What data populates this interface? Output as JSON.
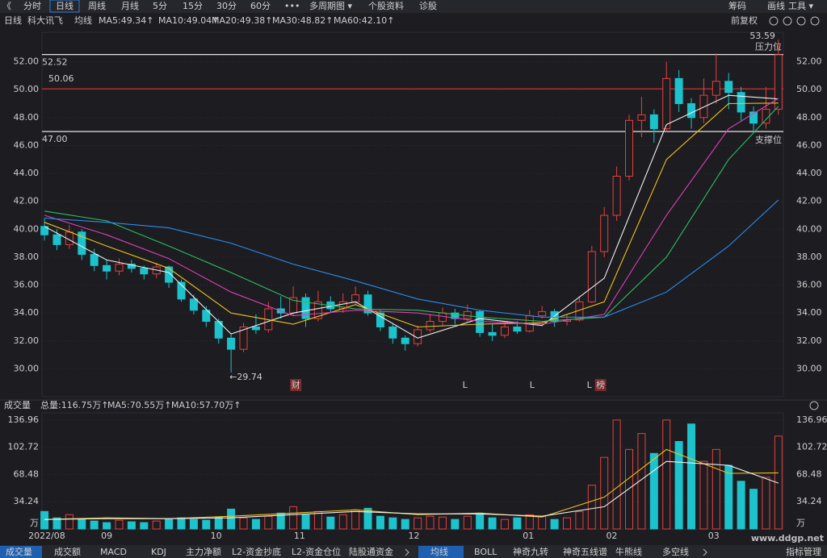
{
  "toolbar": {
    "left": [
      "《",
      "分时",
      "日线",
      "周线",
      "月线",
      "5分",
      "15分",
      "30分",
      "60分",
      "•••",
      "多周期图 ▾",
      "个股资料",
      "诊股"
    ],
    "right": [
      "筹码",
      "画线",
      "工具 ▾"
    ]
  },
  "info": {
    "period": "日线",
    "stock": "科大讯飞",
    "ma_label": "均线",
    "adjust": "前复权"
  },
  "chart_data": [
    {
      "type": "candlestick",
      "xlim": [
        -0.2,
        59.4
      ],
      "ylim": [
        28,
        54
      ],
      "yticks": [
        {
          "value": 30,
          "label": "30.00"
        },
        {
          "value": 32,
          "label": "32.00"
        },
        {
          "value": 34,
          "label": "34.00"
        },
        {
          "value": 36,
          "label": "36.00"
        },
        {
          "value": 38,
          "label": "38.00"
        },
        {
          "value": 40,
          "label": "40.00"
        },
        {
          "value": 42,
          "label": "42.00"
        },
        {
          "value": 44,
          "label": "44.00"
        },
        {
          "value": 46,
          "label": "46.00"
        },
        {
          "value": 48,
          "label": "48.00"
        },
        {
          "value": 50,
          "label": "50.00"
        },
        {
          "value": 52,
          "label": "52.00"
        }
      ],
      "up_color": "#e8413e",
      "down_color": "#1cc3cc",
      "candles": [
        [
          40.2,
          39.6,
          40.8,
          39.2
        ],
        [
          39.6,
          38.9,
          40.0,
          38.5
        ],
        [
          38.9,
          39.8,
          40.3,
          38.6
        ],
        [
          39.8,
          38.2,
          40.0,
          37.8
        ],
        [
          38.2,
          37.4,
          38.6,
          37.0
        ],
        [
          37.4,
          37.0,
          37.8,
          36.4
        ],
        [
          37.0,
          37.5,
          37.9,
          36.7
        ],
        [
          37.5,
          37.2,
          37.8,
          36.9
        ],
        [
          37.2,
          36.8,
          37.4,
          36.4
        ],
        [
          36.8,
          37.3,
          37.6,
          36.5
        ],
        [
          37.3,
          36.2,
          37.4,
          35.8
        ],
        [
          36.2,
          35.0,
          36.4,
          34.8
        ],
        [
          35.0,
          34.2,
          35.3,
          33.9
        ],
        [
          34.2,
          33.4,
          34.5,
          33.0
        ],
        [
          33.4,
          32.2,
          33.6,
          31.8
        ],
        [
          32.2,
          31.4,
          32.5,
          29.74
        ],
        [
          31.4,
          33.0,
          33.3,
          31.2
        ],
        [
          33.0,
          32.8,
          33.9,
          32.5
        ],
        [
          32.8,
          34.3,
          34.8,
          32.6
        ],
        [
          34.3,
          34.0,
          35.2,
          33.6
        ],
        [
          34.0,
          35.1,
          35.9,
          33.8
        ],
        [
          35.1,
          33.6,
          35.4,
          33.0
        ],
        [
          33.6,
          34.8,
          35.6,
          33.4
        ],
        [
          34.8,
          34.3,
          35.2,
          34.0
        ],
        [
          34.3,
          34.8,
          35.4,
          34.0
        ],
        [
          34.8,
          35.3,
          35.9,
          34.6
        ],
        [
          35.3,
          34.0,
          35.6,
          33.8
        ],
        [
          34.0,
          33.0,
          34.2,
          32.7
        ],
        [
          33.0,
          32.2,
          33.2,
          31.8
        ],
        [
          32.2,
          31.8,
          32.4,
          31.3
        ],
        [
          31.8,
          32.8,
          33.1,
          31.6
        ],
        [
          32.8,
          33.4,
          33.9,
          32.6
        ],
        [
          33.4,
          34.0,
          34.4,
          33.1
        ],
        [
          34.0,
          33.6,
          34.3,
          33.2
        ],
        [
          33.6,
          34.1,
          34.6,
          33.4
        ],
        [
          34.1,
          32.6,
          34.2,
          32.3
        ],
        [
          32.6,
          32.4,
          33.2,
          32.0
        ],
        [
          32.4,
          33.0,
          33.3,
          32.2
        ],
        [
          33.0,
          32.7,
          33.4,
          32.5
        ],
        [
          32.7,
          33.8,
          34.2,
          32.6
        ],
        [
          33.8,
          34.1,
          34.5,
          33.6
        ],
        [
          34.1,
          33.4,
          34.3,
          33.0
        ],
        [
          33.4,
          33.5,
          33.9,
          33.1
        ],
        [
          33.5,
          34.8,
          35.2,
          33.4
        ],
        [
          34.8,
          38.4,
          38.8,
          34.7
        ],
        [
          38.4,
          41.0,
          41.6,
          38.0
        ],
        [
          41.0,
          43.8,
          44.5,
          40.6
        ],
        [
          43.8,
          47.8,
          48.2,
          43.5
        ],
        [
          47.8,
          48.2,
          49.5,
          46.6
        ],
        [
          48.2,
          47.2,
          48.6,
          46.2
        ],
        [
          47.2,
          50.8,
          52.0,
          47.0
        ],
        [
          50.8,
          49.0,
          51.4,
          48.4
        ],
        [
          49.0,
          48.0,
          49.4,
          47.2
        ],
        [
          48.0,
          49.6,
          50.8,
          47.6
        ],
        [
          49.6,
          50.6,
          52.6,
          49.0
        ],
        [
          50.6,
          49.8,
          51.2,
          48.6
        ],
        [
          49.8,
          48.4,
          50.2,
          47.8
        ],
        [
          48.4,
          47.6,
          48.8,
          47.0
        ],
        [
          47.6,
          48.6,
          50.2,
          47.2
        ],
        [
          48.6,
          52.5,
          53.59,
          48.2
        ]
      ],
      "ma_x": [
        0,
        5,
        10,
        15,
        20,
        25,
        30,
        35,
        40,
        45,
        50,
        55,
        59
      ],
      "series": [
        {
          "name": "MA5",
          "legend": "MA5:49.34↑",
          "color": "#f0f0f0",
          "values": [
            40.2,
            37.8,
            36.9,
            32.5,
            34.0,
            34.8,
            32.2,
            33.6,
            33.1,
            36.5,
            47.5,
            49.6,
            49.34
          ]
        },
        {
          "name": "MA10",
          "legend": "MA10:49.04↑",
          "color": "#f2c21a",
          "values": [
            40.5,
            38.8,
            37.2,
            34.0,
            33.2,
            34.6,
            33.0,
            33.2,
            33.3,
            34.8,
            45.0,
            49.0,
            49.04
          ]
        },
        {
          "name": "MA20",
          "legend": "MA20:49.38↑",
          "color": "#e040b8",
          "values": [
            41.0,
            39.6,
            37.9,
            35.5,
            33.8,
            34.2,
            34.0,
            33.4,
            33.2,
            33.9,
            41.0,
            47.2,
            49.38
          ]
        },
        {
          "name": "MA30",
          "legend": "MA30:48.82↑",
          "color": "#2fc060",
          "values": [
            41.3,
            40.6,
            38.8,
            36.9,
            34.9,
            34.3,
            34.2,
            33.7,
            33.4,
            33.7,
            38.0,
            45.0,
            48.82
          ]
        },
        {
          "name": "MA60",
          "legend": "MA60:42.10↑",
          "color": "#2a8ef0",
          "values": [
            40.8,
            40.5,
            40.1,
            39.0,
            37.5,
            36.3,
            35.0,
            34.2,
            33.7,
            33.7,
            35.5,
            38.8,
            42.1
          ]
        }
      ],
      "levels": [
        {
          "value": 52.52,
          "label": "52.52",
          "note": "压力位",
          "color": "#e6e6e6"
        },
        {
          "value": 50.06,
          "label": "50.06",
          "color": "#d83434"
        },
        {
          "value": 47,
          "label": "47.00",
          "note": "支撑位",
          "color": "#e6e6e6"
        }
      ],
      "high": {
        "index": 59,
        "value": 53.59,
        "label": "53.59"
      },
      "low": {
        "index": 15,
        "value": 29.74,
        "label": "←29.74"
      },
      "events": [
        {
          "index": 20.2,
          "label": "财"
        },
        {
          "index": 33.8,
          "label": "L"
        },
        {
          "index": 39.2,
          "label": "L"
        },
        {
          "index": 43.8,
          "label": "L"
        },
        {
          "index": 44.7,
          "label": "榜"
        }
      ]
    },
    {
      "type": "bar",
      "title": "成交量",
      "total": "总量:116.75万↑",
      "xlim": [
        -0.2,
        59.4
      ],
      "ylim": [
        0,
        146
      ],
      "yticks": [
        {
          "value": 0,
          "label": "万"
        },
        34.24,
        68.48,
        102.72,
        136.96
      ],
      "values": [
        22,
        14,
        18,
        12,
        10,
        8,
        11,
        9,
        8,
        10,
        12,
        14,
        12,
        11,
        15,
        25,
        14,
        12,
        16,
        20,
        28,
        18,
        22,
        15,
        18,
        24,
        26,
        16,
        14,
        12,
        14,
        16,
        15,
        12,
        16,
        20,
        14,
        12,
        14,
        18,
        16,
        12,
        14,
        22,
        55,
        90,
        137,
        100,
        120,
        95,
        137,
        110,
        132,
        85,
        100,
        80,
        60,
        50,
        65,
        116.75
      ],
      "ma_x": [
        0,
        5,
        10,
        15,
        20,
        25,
        30,
        35,
        40,
        45,
        50,
        55,
        59
      ],
      "series": [
        {
          "name": "MA5",
          "legend": "MA5:70.55万↑",
          "color": "#f2c21a",
          "values": [
            12,
            14,
            13,
            16,
            20,
            24,
            18,
            20,
            15,
            40,
            100,
            70,
            70.55
          ]
        },
        {
          "name": "MA10",
          "legend": "MA10:57.70万↑",
          "color": "#f0f0f0",
          "values": [
            12,
            13,
            13,
            14,
            18,
            22,
            19,
            19,
            16,
            28,
            85,
            80,
            57.7
          ]
        }
      ],
      "xticks": [
        {
          "value": 0,
          "label": "2022/08"
        },
        {
          "value": 5,
          "label": "09"
        },
        {
          "value": 13.8,
          "label": "10"
        },
        {
          "value": 20.5,
          "label": "11"
        },
        {
          "value": 29.7,
          "label": "12"
        },
        {
          "value": 38.9,
          "label": "01"
        },
        {
          "value": 45.6,
          "label": "02"
        },
        {
          "value": 53.8,
          "label": "03"
        }
      ]
    }
  ],
  "bottom_tabs": {
    "left": [
      "成交量",
      "成交额",
      "MACD",
      "KDJ",
      "主力净额",
      "L2-资金抄底",
      "L2-资金仓位",
      "陆股通资金"
    ],
    "right": [
      "均线",
      "BOLL",
      "神奇九转",
      "神奇五线谱",
      "牛熊线",
      "多空线"
    ],
    "manage": "指标管理"
  },
  "watermark": "www.ddgp.net"
}
